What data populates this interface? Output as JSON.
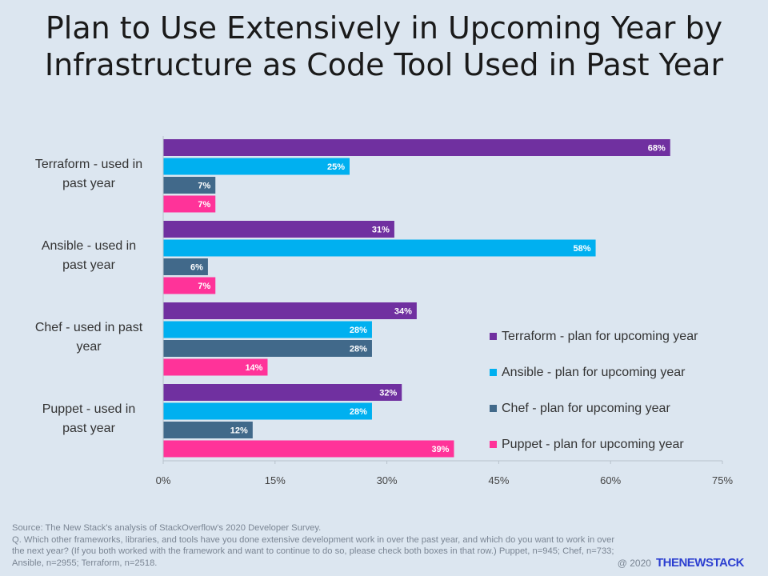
{
  "title_line1": "Plan to Use Extensively in Upcoming Year by",
  "title_line2": "Infrastructure as Code Tool Used in Past Year",
  "chart_data": {
    "type": "bar",
    "orientation": "horizontal",
    "categories": [
      [
        "Terraform - used in",
        "past year"
      ],
      [
        "Ansible - used in",
        "past year"
      ],
      [
        "Chef - used in past",
        "year"
      ],
      [
        "Puppet - used in",
        "past year"
      ]
    ],
    "series": [
      {
        "name": "Terraform - plan for upcoming year",
        "color": "#7030a0",
        "values": [
          68,
          31,
          34,
          32
        ],
        "labels": [
          "68%",
          "31%",
          "34%",
          "32%"
        ]
      },
      {
        "name": "Ansible - plan for upcoming year",
        "color": "#00b0f0",
        "values": [
          25,
          58,
          28,
          28
        ],
        "labels": [
          "25%",
          "58%",
          "28%",
          "28%"
        ]
      },
      {
        "name": "Chef - plan for upcoming year",
        "color": "#41698a",
        "values": [
          7,
          6,
          28,
          12
        ],
        "labels": [
          "7%",
          "6%",
          "28%",
          "12%"
        ]
      },
      {
        "name": "Puppet - plan for upcoming year",
        "color": "#ff3399",
        "values": [
          7,
          7,
          14,
          39
        ],
        "labels": [
          "7%",
          "7%",
          "14%",
          "39%"
        ]
      }
    ],
    "xlim": [
      0,
      75
    ],
    "xticks": [
      "0%",
      "15%",
      "30%",
      "45%",
      "60%",
      "75%"
    ],
    "legend_position": "right",
    "grid": false
  },
  "footer": {
    "source": "Source: The New Stack's analysis of StackOverflow's 2020 Developer Survey.",
    "question": "Q. Which  other frameworks, libraries, and tools have you done extensive development work in over the past year, and which  do you want to work in over the next year? (If you both worked with the framework and want to continue to do so, please check both boxes in that row.) Puppet, n=945; Chef, n=733; Ansible, n=2955; Terraform, n=2518."
  },
  "credit": {
    "copyright": "@ 2020",
    "brand": "THENEWSTACK"
  }
}
